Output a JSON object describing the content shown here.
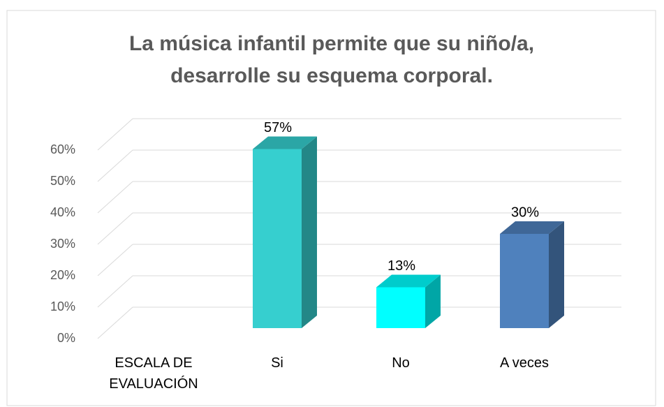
{
  "chart_data": {
    "type": "bar3d",
    "title": [
      "La música infantil permite que su niño/a,",
      "desarrolle su esquema corporal."
    ],
    "categories": [
      "ESCALA DE EVALUACIÓN",
      "Si",
      "No",
      "A veces"
    ],
    "values": [
      null,
      57,
      13,
      30
    ],
    "value_labels": [
      null,
      "57%",
      "13%",
      "30%"
    ],
    "colors": [
      null,
      "#36cfcf",
      "#00ffff",
      "#4f81bd"
    ],
    "ylim": [
      0,
      60
    ],
    "yticks": [
      {
        "value": 0,
        "label": "0%"
      },
      {
        "value": 10,
        "label": "10%"
      },
      {
        "value": 20,
        "label": "20%"
      },
      {
        "value": 30,
        "label": "30%"
      },
      {
        "value": 40,
        "label": "40%"
      },
      {
        "value": 50,
        "label": "50%"
      },
      {
        "value": 60,
        "label": "60%"
      }
    ],
    "grid": true
  }
}
